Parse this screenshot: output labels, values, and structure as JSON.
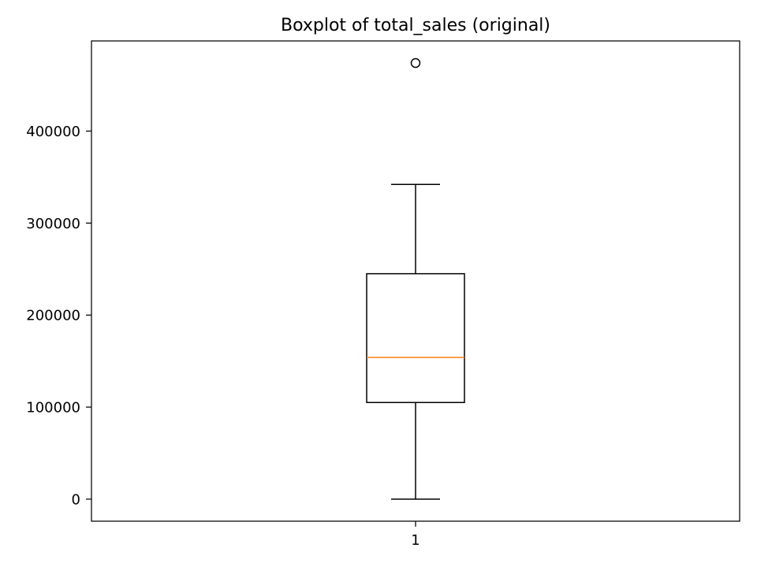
{
  "chart_data": {
    "type": "box",
    "title": "Boxplot of total_sales (original)",
    "xlabel": "",
    "ylabel": "",
    "categories": [
      "1"
    ],
    "boxes": [
      {
        "category": "1",
        "whisker_low": 0,
        "q1": 105000,
        "median": 154000,
        "q3": 245000,
        "whisker_high": 342000,
        "outliers": [
          474000
        ]
      }
    ],
    "ylim": [
      -24000,
      498000
    ],
    "yticks": [
      0,
      100000,
      200000,
      300000,
      400000
    ],
    "ytick_labels": [
      "0",
      "100000",
      "200000",
      "300000",
      "400000"
    ],
    "xtick_labels": [
      "1"
    ],
    "grid": false,
    "colors": {
      "box": "#000000",
      "median": "#ff7f0e",
      "whisker": "#000000",
      "outlier_edge": "#000000"
    }
  }
}
